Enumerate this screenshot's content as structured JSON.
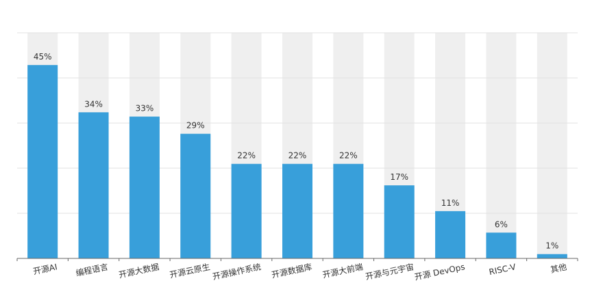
{
  "chart_data": {
    "type": "bar",
    "categories": [
      "开源AI",
      "编程语言",
      "开源大数据",
      "开源云原生",
      "开源操作系统",
      "开源数据库",
      "开源大前端",
      "开源与元宇宙",
      "开源 DevOps",
      "RISC-V",
      "其他"
    ],
    "values": [
      45,
      34,
      33,
      29,
      22,
      22,
      22,
      17,
      11,
      6,
      1
    ],
    "value_labels": [
      "45%",
      "34%",
      "33%",
      "29%",
      "22%",
      "22%",
      "22%",
      "17%",
      "11%",
      "6%",
      "1%"
    ],
    "color": "#389fda",
    "ylim": [
      0,
      52.5
    ],
    "grid": true
  }
}
